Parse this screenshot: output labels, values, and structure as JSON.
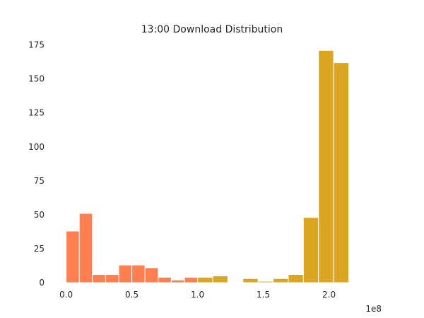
{
  "chart_data": {
    "type": "bar",
    "title": "13:00 Download Distribution",
    "xlabel": "",
    "ylabel": "",
    "x_offset_label": "1e8",
    "xlim": [
      -0.1,
      2.4
    ],
    "ylim": [
      0,
      180
    ],
    "x_ticks": [
      {
        "value": 0.0,
        "label": "0.0"
      },
      {
        "value": 0.5,
        "label": "0.5"
      },
      {
        "value": 1.0,
        "label": "1.0"
      },
      {
        "value": 1.5,
        "label": "1.5"
      },
      {
        "value": 2.0,
        "label": "2.0"
      }
    ],
    "y_ticks": [
      {
        "value": 0,
        "label": "0"
      },
      {
        "value": 25,
        "label": "25"
      },
      {
        "value": 50,
        "label": "50"
      },
      {
        "value": 75,
        "label": "75"
      },
      {
        "value": 100,
        "label": "100"
      },
      {
        "value": 125,
        "label": "125"
      },
      {
        "value": 150,
        "label": "150"
      },
      {
        "value": 175,
        "label": "175"
      }
    ],
    "grid": false,
    "colors": {
      "group_a": "#FF7F50",
      "group_b": "#DAA520"
    },
    "series": [
      {
        "color": "#FF7F50",
        "bins": [
          {
            "x0": 0.0,
            "x1": 0.1,
            "count": 38
          },
          {
            "x0": 0.1,
            "x1": 0.2,
            "count": 51
          },
          {
            "x0": 0.2,
            "x1": 0.3,
            "count": 6
          },
          {
            "x0": 0.3,
            "x1": 0.4,
            "count": 6
          },
          {
            "x0": 0.4,
            "x1": 0.5,
            "count": 13
          },
          {
            "x0": 0.5,
            "x1": 0.6,
            "count": 13
          },
          {
            "x0": 0.6,
            "x1": 0.7,
            "count": 11
          },
          {
            "x0": 0.7,
            "x1": 0.8,
            "count": 4
          },
          {
            "x0": 0.8,
            "x1": 0.9,
            "count": 2
          },
          {
            "x0": 0.9,
            "x1": 1.0,
            "count": 4
          }
        ]
      },
      {
        "color": "#DAA520",
        "bins": [
          {
            "x0": 1.0,
            "x1": 1.115,
            "count": 4
          },
          {
            "x0": 1.115,
            "x1": 1.23,
            "count": 5
          },
          {
            "x0": 1.345,
            "x1": 1.46,
            "count": 3
          },
          {
            "x0": 1.46,
            "x1": 1.575,
            "count": 1
          },
          {
            "x0": 1.575,
            "x1": 1.69,
            "count": 3
          },
          {
            "x0": 1.69,
            "x1": 1.805,
            "count": 6
          },
          {
            "x0": 1.805,
            "x1": 1.92,
            "count": 48
          },
          {
            "x0": 1.92,
            "x1": 2.035,
            "count": 171
          },
          {
            "x0": 2.035,
            "x1": 2.15,
            "count": 162
          }
        ]
      }
    ]
  }
}
